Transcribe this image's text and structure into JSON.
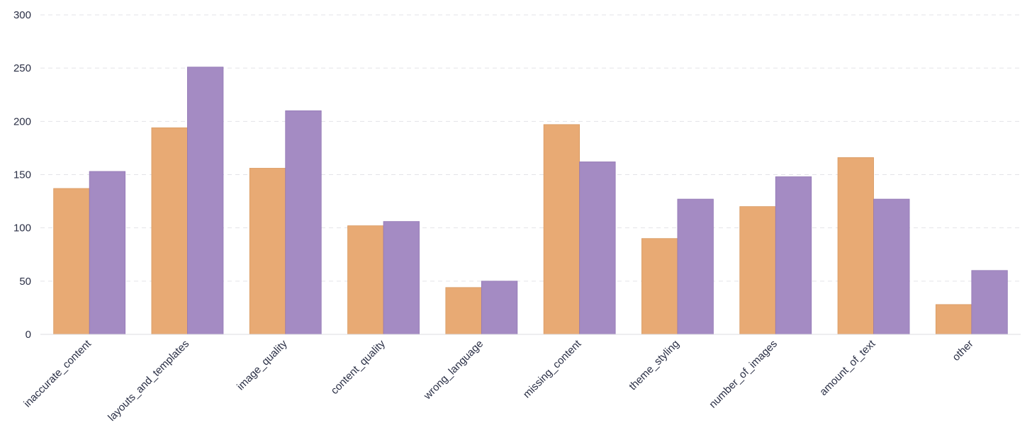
{
  "chart_data": {
    "type": "bar",
    "categories": [
      "inaccurate_content",
      "layouts_and_templates",
      "image_quality",
      "content_quality",
      "wrong_language",
      "missing_content",
      "theme_styling",
      "number_of_images",
      "amount_of_text",
      "other"
    ],
    "series": [
      {
        "color": "#e8aa74",
        "values": [
          137,
          194,
          156,
          102,
          44,
          197,
          90,
          120,
          166,
          28
        ]
      },
      {
        "color": "#a48bc3",
        "values": [
          153,
          251,
          210,
          106,
          50,
          162,
          127,
          148,
          127,
          60
        ]
      }
    ],
    "yticks": [
      0,
      50,
      100,
      150,
      200,
      250,
      300
    ],
    "ylim": [
      0,
      300
    ],
    "grid": true,
    "legend": "none",
    "title": "",
    "xlabel": "",
    "ylabel": ""
  }
}
